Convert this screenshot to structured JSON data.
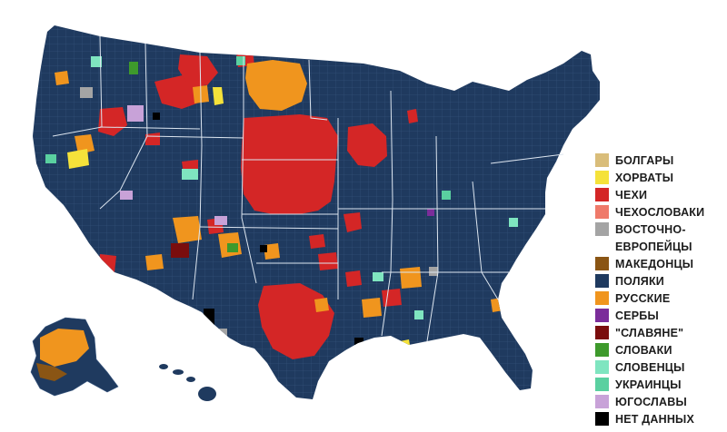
{
  "legend": {
    "items": [
      {
        "label": "БОЛГАРЫ",
        "color": "#d9bd7a"
      },
      {
        "label": "ХОРВАТЫ",
        "color": "#f5e23a"
      },
      {
        "label": "ЧЕХИ",
        "color": "#d42626"
      },
      {
        "label": "ЧЕХОСЛОВАКИ",
        "color": "#ef7a6a"
      },
      {
        "label": "ВОСТОЧНО-\nЕВРОПЕЙЦЫ",
        "color": "#a4a4a4"
      },
      {
        "label": "МАКЕДОНЦЫ",
        "color": "#8a5514"
      },
      {
        "label": "ПОЛЯКИ",
        "color": "#1f3a5f"
      },
      {
        "label": "РУССКИЕ",
        "color": "#f0951e"
      },
      {
        "label": "СЕРБЫ",
        "color": "#7b2d9a"
      },
      {
        "label": "\"СЛАВЯНЕ\"",
        "color": "#7a0d0d"
      },
      {
        "label": "СЛОВАКИ",
        "color": "#3e9a2c"
      },
      {
        "label": "СЛОВЕНЦЫ",
        "color": "#7fe5c0"
      },
      {
        "label": "УКРАИНЦЫ",
        "color": "#5ad0a0"
      },
      {
        "label": "ЮГОСЛАВЫ",
        "color": "#c8a2d8"
      },
      {
        "label": "НЕТ ДАННЫХ",
        "color": "#000000"
      }
    ]
  },
  "colors": {
    "background": "#ffffff",
    "base": "#1f3a5f",
    "county_line": "#3d5a82",
    "state_border": "#dde6f0"
  }
}
